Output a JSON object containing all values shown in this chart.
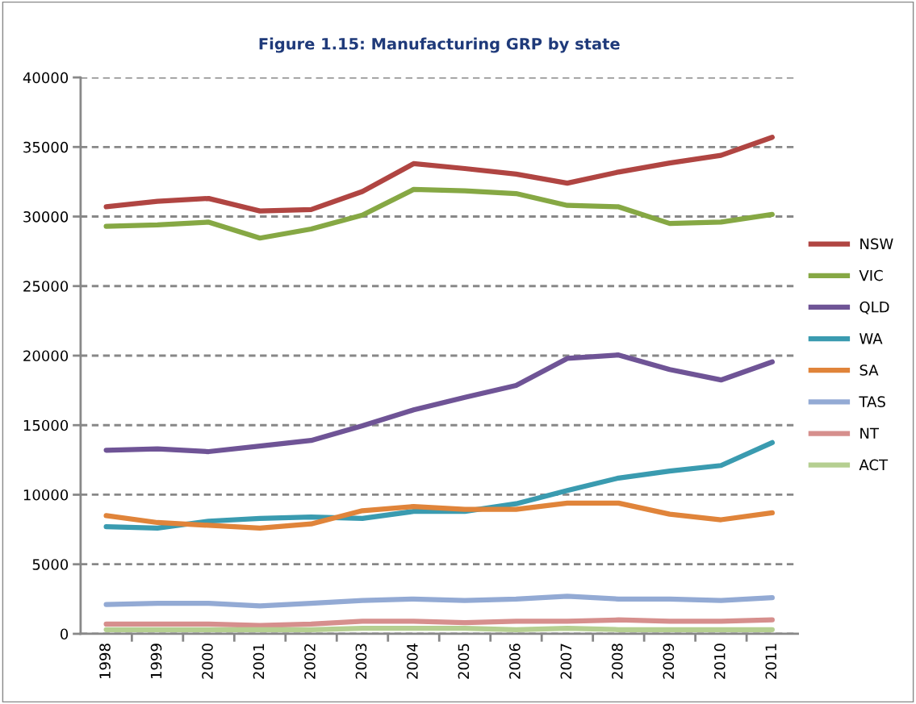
{
  "chart_data": {
    "type": "line",
    "title": "Figure 1.15: Manufacturing GRP by state",
    "categories": [
      "1998",
      "1999",
      "2000",
      "2001",
      "2002",
      "2003",
      "2004",
      "2005",
      "2006",
      "2007",
      "2008",
      "2009",
      "2010",
      "2011"
    ],
    "ylim": [
      0,
      40000
    ],
    "yticks": [
      0,
      5000,
      10000,
      15000,
      20000,
      25000,
      30000,
      35000,
      40000
    ],
    "grid": "y",
    "legend": "right",
    "marker": "none",
    "line_style": "solid",
    "series": [
      {
        "name": "NSW",
        "color": "#b04542",
        "values": [
          30700,
          31100,
          31300,
          30400,
          30500,
          31800,
          33800,
          33450,
          33050,
          32400,
          33200,
          33850,
          34400,
          35700
        ]
      },
      {
        "name": "VIC",
        "color": "#86a844",
        "values": [
          29300,
          29400,
          29600,
          28450,
          29100,
          30100,
          31950,
          31850,
          31650,
          30800,
          30700,
          29500,
          29600,
          30150
        ]
      },
      {
        "name": "QLD",
        "color": "#6f5496",
        "values": [
          13200,
          13300,
          13100,
          13500,
          13900,
          14950,
          16100,
          17000,
          17850,
          19800,
          20050,
          19000,
          18250,
          19550
        ]
      },
      {
        "name": "WA",
        "color": "#3a9bb0",
        "values": [
          7700,
          7600,
          8100,
          8300,
          8400,
          8300,
          8800,
          8800,
          9350,
          10300,
          11200,
          11700,
          12100,
          13750
        ]
      },
      {
        "name": "SA",
        "color": "#e0843a",
        "values": [
          8500,
          8000,
          7800,
          7600,
          7900,
          8850,
          9150,
          8950,
          8950,
          9400,
          9400,
          8600,
          8200,
          8700
        ]
      },
      {
        "name": "TAS",
        "color": "#93aad4",
        "values": [
          2100,
          2200,
          2200,
          2000,
          2200,
          2400,
          2500,
          2400,
          2500,
          2700,
          2500,
          2500,
          2400,
          2600
        ]
      },
      {
        "name": "NT",
        "color": "#d68f8d",
        "values": [
          700,
          700,
          700,
          600,
          700,
          900,
          900,
          800,
          900,
          900,
          1000,
          900,
          900,
          1000
        ]
      },
      {
        "name": "ACT",
        "color": "#b5cf91",
        "values": [
          300,
          300,
          300,
          300,
          300,
          400,
          400,
          400,
          300,
          400,
          300,
          300,
          300,
          300
        ]
      }
    ]
  }
}
